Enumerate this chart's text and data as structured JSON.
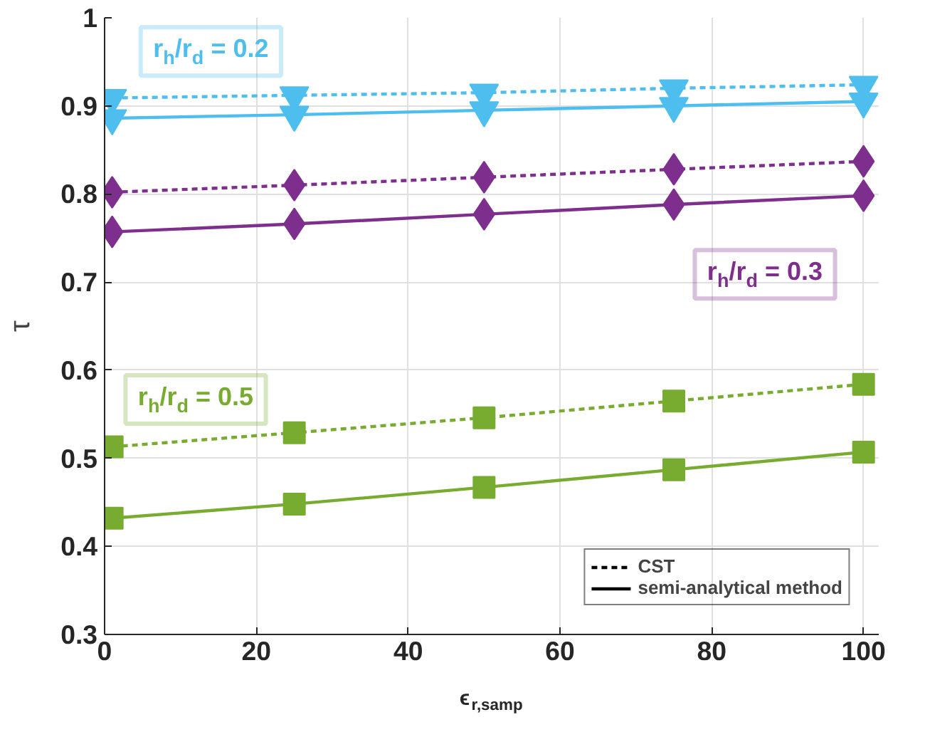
{
  "chart_data": {
    "type": "line",
    "xlabel": "ϵ$_{r,samp}$",
    "ylabel": "τ",
    "x": [
      1,
      25,
      50,
      75,
      100
    ],
    "series": [
      {
        "color": "#4dbeee",
        "marker": "triangle_down",
        "line_style": "dashed",
        "values": [
          0.909,
          0.912,
          0.915,
          0.92,
          0.924
        ]
      },
      {
        "color": "#4dbeee",
        "marker": "triangle_down",
        "line_style": "solid",
        "values": [
          0.886,
          0.89,
          0.895,
          0.9,
          0.905
        ]
      },
      {
        "color": "#7e2f8e",
        "marker": "diamond",
        "line_style": "dashed",
        "values": [
          0.802,
          0.81,
          0.819,
          0.828,
          0.837
        ]
      },
      {
        "color": "#7e2f8e",
        "marker": "diamond",
        "line_style": "solid",
        "values": [
          0.757,
          0.766,
          0.777,
          0.788,
          0.798
        ]
      },
      {
        "color": "#77ac30",
        "marker": "square",
        "line_style": "dashed",
        "values": [
          0.513,
          0.529,
          0.546,
          0.565,
          0.584
        ]
      },
      {
        "color": "#77ac30",
        "marker": "square",
        "line_style": "solid",
        "values": [
          0.432,
          0.448,
          0.467,
          0.487,
          0.507
        ]
      },
      {
        "name": "CST",
        "color": "#000000",
        "marker": "none",
        "line_style": "dashed",
        "values": [
          null,
          null,
          null,
          null,
          null
        ]
      },
      {
        "name": "semi-analytical method",
        "color": "#000000",
        "marker": "none",
        "line_style": "solid",
        "values": [
          null,
          null,
          null,
          null,
          null
        ]
      }
    ],
    "annotations": [
      "r$_{h}$/r$_{d}$ = 0.2",
      "r$_{h}$/r$_{d}$ = 0.3",
      "r$_{h}$/r$_{d}$ = 0.5"
    ],
    "xlim": [
      0,
      102
    ],
    "ylim": [
      0.3,
      1
    ],
    "xticks": [
      0,
      20,
      40,
      60,
      80,
      100
    ],
    "yticks": [
      0.3,
      0.4,
      0.5,
      0.6,
      0.7,
      0.8,
      0.9,
      1
    ],
    "grid": true,
    "legend": "bottom right"
  }
}
